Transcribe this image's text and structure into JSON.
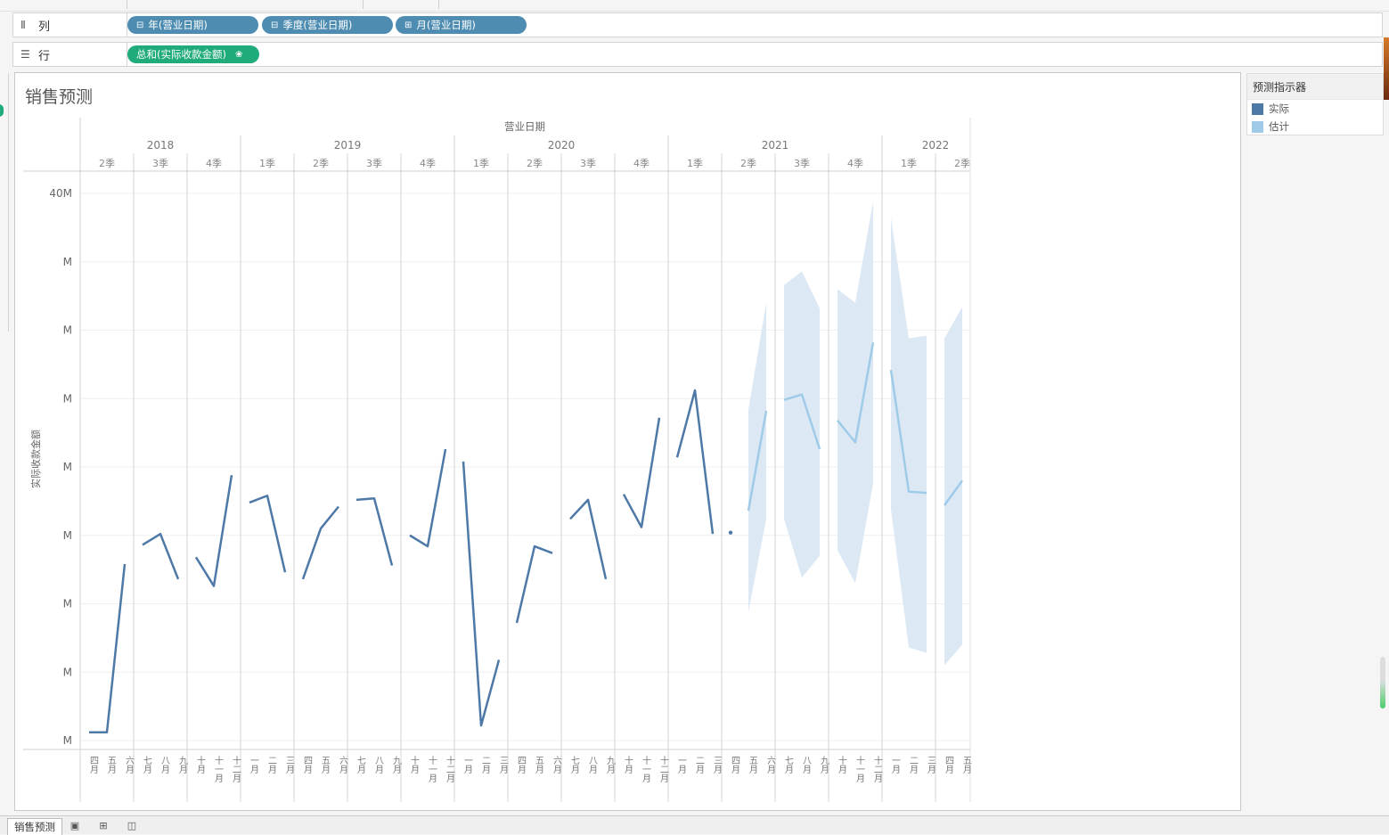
{
  "shelves": {
    "columns": {
      "icon": "columns-icon",
      "label": "列",
      "pills": [
        {
          "icon": "collapse-icon",
          "text": "年(营业日期)"
        },
        {
          "icon": "collapse-icon",
          "text": "季度(营业日期)"
        },
        {
          "icon": "expand-icon",
          "text": "月(营业日期)"
        }
      ]
    },
    "rows": {
      "icon": "rows-icon",
      "label": "行",
      "pills": [
        {
          "text": "总和(实际收款金额)",
          "icon": "forecast-icon"
        }
      ]
    }
  },
  "sheet": {
    "title": "销售预测"
  },
  "legend": {
    "title": "预测指示器",
    "items": [
      {
        "label": "实际",
        "color": "#4e79a7"
      },
      {
        "label": "估计",
        "color": "#a0cbe8"
      }
    ]
  },
  "tabs": {
    "active": "销售预测",
    "icons": [
      "new-worksheet-icon",
      "new-dashboard-icon",
      "new-story-icon"
    ]
  },
  "chart_data": {
    "type": "line",
    "title": "营业日期",
    "ylabel": "实际收款金额",
    "ylim": [
      0,
      40
    ],
    "y_unit": "M",
    "y_ticks": [
      "40M",
      "M",
      "M",
      "M",
      "M",
      "M",
      "M",
      "M",
      "M"
    ],
    "y_tick_values": [
      40,
      35,
      30,
      25,
      20,
      15,
      10,
      5,
      0
    ],
    "years": [
      {
        "label": "2018",
        "quarters": [
          "2季",
          "3季",
          "4季"
        ]
      },
      {
        "label": "2019",
        "quarters": [
          "1季",
          "2季",
          "3季",
          "4季"
        ]
      },
      {
        "label": "2020",
        "quarters": [
          "1季",
          "2季",
          "3季",
          "4季"
        ]
      },
      {
        "label": "2021",
        "quarters": [
          "1季",
          "2季",
          "3季",
          "4季"
        ]
      },
      {
        "label": "2022",
        "quarters": [
          "1季",
          "2季"
        ]
      }
    ],
    "months": [
      "四月",
      "五月",
      "六月",
      "七月",
      "八月",
      "九月",
      "十月",
      "十一月",
      "十二月",
      "一月",
      "二月",
      "三月",
      "四月",
      "五月",
      "六月",
      "七月",
      "八月",
      "九月",
      "十月",
      "十一月",
      "十二月",
      "一月",
      "二月",
      "三月",
      "四月",
      "五月",
      "六月",
      "七月",
      "八月",
      "九月",
      "十月",
      "十一月",
      "十二月",
      "一月",
      "二月",
      "三月",
      "四月",
      "五月",
      "六月",
      "七月",
      "八月",
      "九月",
      "十月",
      "十一月",
      "十二月",
      "一月",
      "二月",
      "三月",
      "四月",
      "五月"
    ],
    "series": [
      {
        "name": "实际",
        "color": "#4e79a7",
        "values": [
          0.6,
          0.6,
          12.9,
          14.3,
          15.1,
          11.8,
          13.4,
          11.3,
          19.4,
          17.4,
          17.9,
          12.3,
          11.8,
          15.5,
          17.1,
          17.6,
          17.7,
          12.8,
          15.0,
          14.2,
          21.3,
          20.4,
          1.1,
          5.9,
          8.6,
          14.2,
          13.7,
          16.2,
          17.6,
          11.8,
          18.0,
          15.6,
          23.6,
          20.7,
          25.6,
          15.1,
          15.2,
          null,
          null,
          null,
          null,
          null,
          null,
          null,
          null,
          null,
          null,
          null,
          null,
          null
        ]
      },
      {
        "name": "估计",
        "color": "#a0cbe8",
        "values": [
          null,
          null,
          null,
          null,
          null,
          null,
          null,
          null,
          null,
          null,
          null,
          null,
          null,
          null,
          null,
          null,
          null,
          null,
          null,
          null,
          null,
          null,
          null,
          null,
          null,
          null,
          null,
          null,
          null,
          null,
          null,
          null,
          null,
          null,
          null,
          null,
          null,
          16.8,
          24.1,
          24.9,
          25.3,
          21.3,
          23.4,
          21.8,
          29.1,
          27.1,
          18.2,
          18.1,
          17.2,
          19.0
        ]
      }
    ],
    "estimate_band": {
      "upper": [
        null,
        null,
        null,
        null,
        null,
        null,
        null,
        null,
        null,
        null,
        null,
        null,
        null,
        null,
        null,
        null,
        null,
        null,
        null,
        null,
        null,
        null,
        null,
        null,
        null,
        null,
        null,
        null,
        null,
        null,
        null,
        null,
        null,
        null,
        null,
        null,
        null,
        24.2,
        32.0,
        33.3,
        34.3,
        31.6,
        33.0,
        32.0,
        39.4,
        38.2,
        29.4,
        29.6,
        29.4,
        31.7
      ],
      "lower": [
        null,
        null,
        null,
        null,
        null,
        null,
        null,
        null,
        null,
        null,
        null,
        null,
        null,
        null,
        null,
        null,
        null,
        null,
        null,
        null,
        null,
        null,
        null,
        null,
        null,
        null,
        null,
        null,
        null,
        null,
        null,
        null,
        null,
        null,
        null,
        null,
        null,
        9.4,
        16.2,
        16.2,
        11.9,
        13.5,
        13.9,
        11.5,
        18.8,
        16.9,
        6.8,
        6.4,
        5.5,
        7.0
      ]
    }
  }
}
